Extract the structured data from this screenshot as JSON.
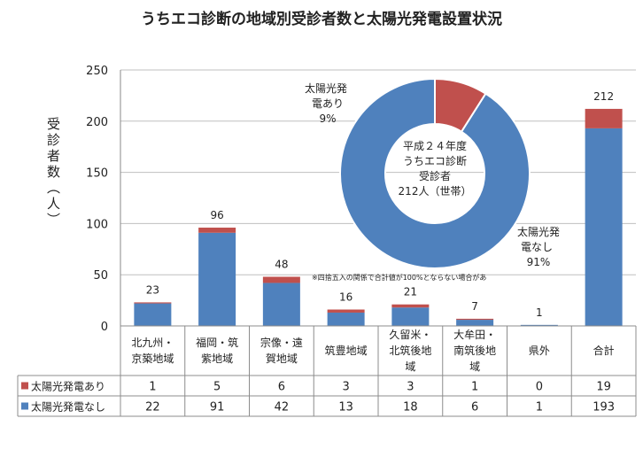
{
  "chart_data": {
    "type": "bar",
    "title": "うちエコ診断の地域別受診者数と太陽光発電設置状況",
    "ylabel": "受診者数（人）",
    "ylim": [
      0,
      250
    ],
    "yticks": [
      "250",
      "200",
      "150",
      "100",
      "50",
      "0"
    ],
    "stacked": true,
    "grid": true,
    "categories": [
      [
        "北九州・",
        "京築地域"
      ],
      [
        "福岡・筑",
        "紫地域"
      ],
      [
        "宗像・遠",
        "賀地域"
      ],
      [
        "筑豊地域"
      ],
      [
        "久留米・",
        "北筑後地",
        "域"
      ],
      [
        "大牟田・",
        "南筑後地",
        "域"
      ],
      [
        "県外"
      ],
      [
        "合計"
      ]
    ],
    "series": [
      {
        "name": "太陽光発電なし",
        "color": "#4f81bd",
        "values": [
          22,
          91,
          42,
          13,
          18,
          6,
          1,
          193
        ],
        "table": [
          "22",
          "91",
          "42",
          "13",
          "18",
          "6",
          "1",
          "193"
        ]
      },
      {
        "name": "太陽光発電あり",
        "color": "#c0504d",
        "values": [
          1,
          5,
          6,
          3,
          3,
          1,
          0,
          19
        ],
        "table": [
          "1",
          "5",
          "6",
          "3",
          "3",
          "1",
          "0",
          "19"
        ]
      }
    ],
    "totals": [
      "23",
      "96",
      "48",
      "16",
      "21",
      "7",
      "1",
      "212"
    ],
    "note": "※四捨五入の関係で合計値が100%とならない場合があ",
    "inset": {
      "type": "pie",
      "center_text": [
        "平成２４年度",
        "うちエコ診断",
        "受診者",
        "212人（世帯）"
      ],
      "slices": [
        {
          "label": [
            "太陽光発",
            "電あり",
            "9%"
          ],
          "value": 9,
          "color": "#c0504d"
        },
        {
          "label": [
            "太陽光発",
            "電なし",
            "91%"
          ],
          "value": 91,
          "color": "#4f81bd"
        }
      ]
    }
  }
}
